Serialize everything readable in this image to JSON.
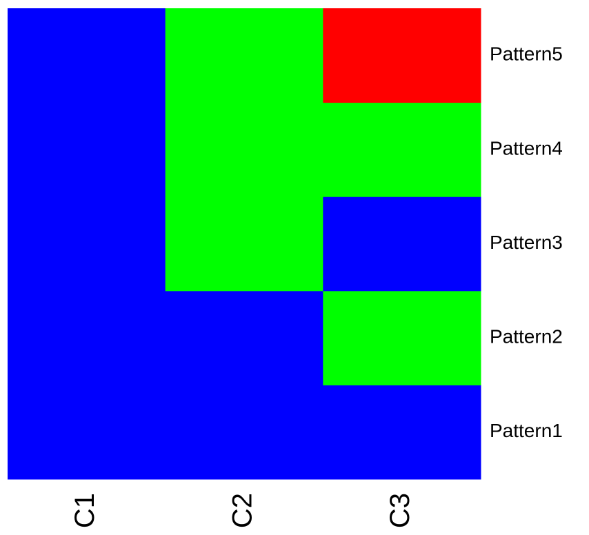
{
  "chart_data": {
    "type": "heatmap",
    "x": [
      "C1",
      "C2",
      "C3"
    ],
    "y": [
      "Pattern1",
      "Pattern2",
      "Pattern3",
      "Pattern4",
      "Pattern5"
    ],
    "colors": [
      [
        "#0000ff",
        "#0000ff",
        "#0000ff"
      ],
      [
        "#0000ff",
        "#0000ff",
        "#00ff00"
      ],
      [
        "#0000ff",
        "#00ff00",
        "#0000ff"
      ],
      [
        "#0000ff",
        "#00ff00",
        "#00ff00"
      ],
      [
        "#0000ff",
        "#00ff00",
        "#ff0000"
      ]
    ]
  }
}
